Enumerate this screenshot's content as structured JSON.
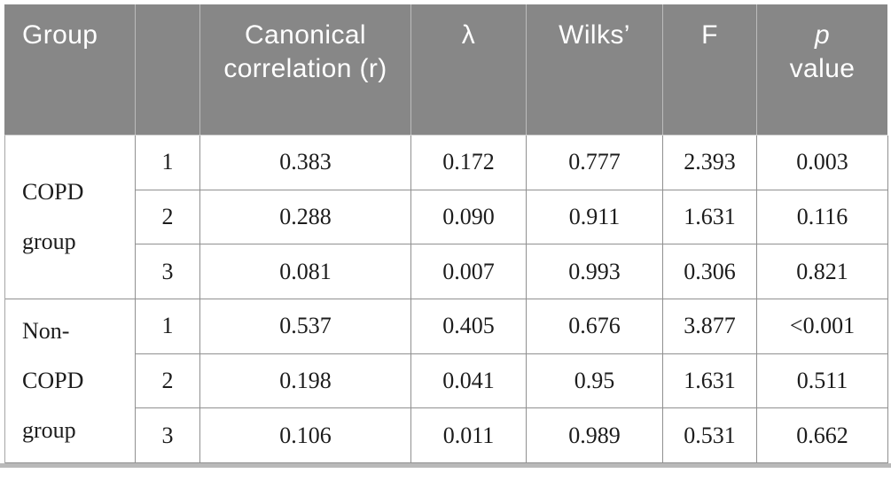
{
  "table": {
    "header": {
      "group": "Group",
      "canonical": "Canonical correlation (r)",
      "lambda": "λ",
      "wilks": "Wilks’",
      "f": "F",
      "p_symbol": "p",
      "p_word": "value"
    },
    "groups": [
      {
        "label": "COPD\ngroup",
        "rows": [
          {
            "index": "1",
            "r": "0.383",
            "lambda": "0.172",
            "wilks": "0.777",
            "f": "2.393",
            "p": "0.003"
          },
          {
            "index": "2",
            "r": "0.288",
            "lambda": "0.090",
            "wilks": "0.911",
            "f": "1.631",
            "p": "0.116"
          },
          {
            "index": "3",
            "r": "0.081",
            "lambda": "0.007",
            "wilks": "0.993",
            "f": "0.306",
            "p": "0.821"
          }
        ]
      },
      {
        "label": "Non-\nCOPD\ngroup",
        "rows": [
          {
            "index": "1",
            "r": "0.537",
            "lambda": "0.405",
            "wilks": "0.676",
            "f": "3.877",
            "p": "<0.001"
          },
          {
            "index": "2",
            "r": "0.198",
            "lambda": "0.041",
            "wilks": "0.95",
            "f": "1.631",
            "p": "0.511"
          },
          {
            "index": "3",
            "r": "0.106",
            "lambda": "0.011",
            "wilks": "0.989",
            "f": "0.531",
            "p": "0.662"
          }
        ]
      }
    ]
  },
  "colors": {
    "header_bg": "#878787",
    "header_text": "#ffffff",
    "body_text": "#1c1c1c",
    "grid_line": "#909090",
    "bottom_rule": "#b9b9b9"
  }
}
